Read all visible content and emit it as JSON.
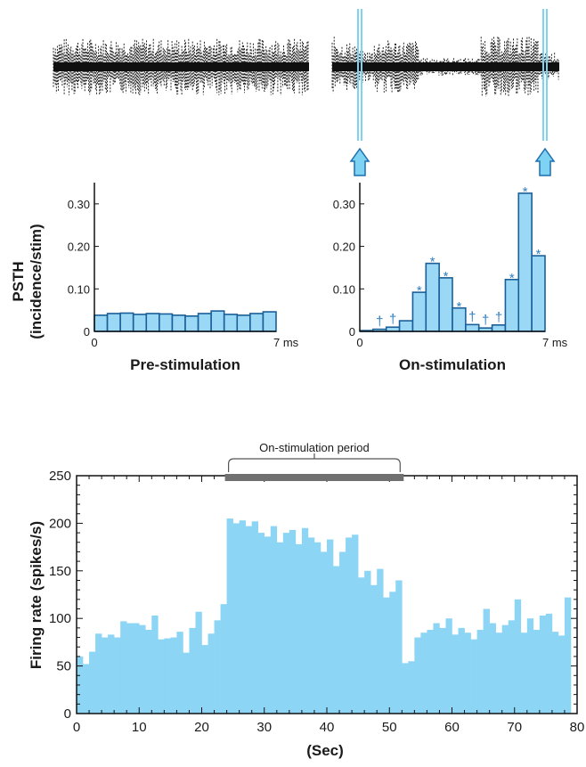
{
  "chart_data": [
    {
      "type": "bar",
      "xlabel": "Pre-stimulation",
      "ylabel": "PSTH\n(incidence/stim)",
      "x_ticks": [
        "0",
        "7 ms"
      ],
      "y_ticks": [
        "0",
        "0.10",
        "0.20",
        "0.30"
      ],
      "ylim": [
        0,
        0.35
      ],
      "xlim": [
        0,
        7
      ],
      "bin_width_ms": 0.5,
      "values": [
        0.038,
        0.042,
        0.043,
        0.04,
        0.042,
        0.041,
        0.038,
        0.036,
        0.042,
        0.048,
        0.04,
        0.038,
        0.042,
        0.046
      ],
      "color": "#9bd8f5"
    },
    {
      "type": "bar",
      "xlabel": "On-stimulation",
      "x_ticks": [
        "0",
        "7 ms"
      ],
      "y_ticks": [
        "0",
        "0.10",
        "0.20",
        "0.30"
      ],
      "ylim": [
        0,
        0.35
      ],
      "xlim": [
        0,
        7
      ],
      "bin_width_ms": 0.5,
      "values": [
        0.002,
        0.005,
        0.01,
        0.025,
        0.092,
        0.16,
        0.126,
        0.055,
        0.016,
        0.008,
        0.015,
        0.122,
        0.325,
        0.178
      ],
      "markers": [
        "",
        "†",
        "†",
        "",
        "*",
        "*",
        "*",
        "*",
        "†",
        "†",
        "†",
        "*",
        "*",
        "*"
      ],
      "color": "#9bd8f5"
    },
    {
      "type": "bar",
      "xlabel": "(Sec)",
      "ylabel": "Firing rate (spikes/s)",
      "x_ticks": [
        "0",
        "10",
        "20",
        "30",
        "40",
        "50",
        "60",
        "70",
        "80"
      ],
      "y_ticks": [
        "0",
        "50",
        "100",
        "150",
        "200",
        "250"
      ],
      "xlim": [
        0,
        80
      ],
      "ylim": [
        0,
        250
      ],
      "annotation": "On-stimulation period",
      "stim_period": [
        24,
        52
      ],
      "values": [
        60,
        52,
        65,
        84,
        80,
        83,
        80,
        97,
        95,
        95,
        93,
        88,
        103,
        78,
        79,
        80,
        86,
        64,
        90,
        107,
        72,
        84,
        98,
        115,
        205,
        200,
        203,
        197,
        202,
        190,
        186,
        197,
        180,
        190,
        193,
        178,
        195,
        185,
        180,
        170,
        183,
        155,
        170,
        185,
        188,
        143,
        150,
        135,
        152,
        122,
        128,
        140,
        53,
        55,
        80,
        85,
        88,
        95,
        90,
        100,
        83,
        90,
        85,
        78,
        88,
        110,
        95,
        85,
        93,
        98,
        120,
        85,
        100,
        88,
        103,
        105,
        86,
        82,
        122
      ],
      "color": "#8dd5f5"
    }
  ]
}
